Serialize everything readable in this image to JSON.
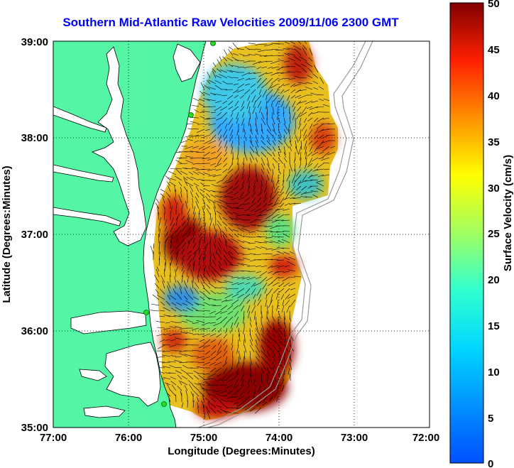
{
  "title": "Southern Mid-Atlantic Raw Velocities 2009/11/06 2300 GMT",
  "map": {
    "xlabel": "Longitude (Degrees:Minutes)",
    "ylabel": "Latitude (Degrees:Minutes)",
    "x_ticks": [
      "77:00",
      "76:00",
      "75:00",
      "74:00",
      "73:00",
      "72:00"
    ],
    "y_ticks": [
      "39:00",
      "38:00",
      "37:00",
      "36:00",
      "35:00"
    ],
    "lon_range": [
      -77,
      -72
    ],
    "lat_range": [
      35,
      39
    ],
    "grid": "dotted",
    "land_color": "#55f5a6",
    "coast_color": "#000000",
    "bathymetry_color": "#9a9a9a",
    "station_color": "#22dd22"
  },
  "colorbar": {
    "label": "Surface Velocity (cm/s)",
    "ticks": [
      "50",
      "45",
      "40",
      "35",
      "30",
      "25",
      "20",
      "15",
      "10",
      "5",
      "0"
    ],
    "range": [
      0,
      50
    ],
    "colormap": "jet"
  }
}
